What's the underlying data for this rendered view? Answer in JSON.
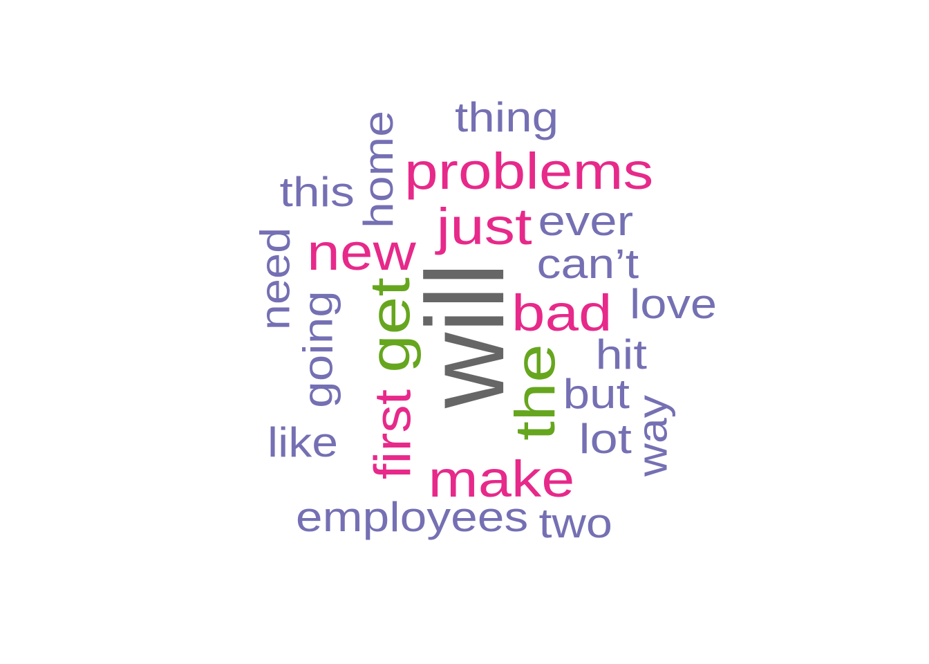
{
  "colors": {
    "gray": "#666666",
    "green": "#66A61E",
    "pink": "#E7298A",
    "purple": "#7570B3"
  },
  "words": [
    {
      "text": "will",
      "color": "gray"
    },
    {
      "text": "get",
      "color": "green"
    },
    {
      "text": "the",
      "color": "green"
    },
    {
      "text": "problems",
      "color": "pink"
    },
    {
      "text": "just",
      "color": "pink"
    },
    {
      "text": "new",
      "color": "pink"
    },
    {
      "text": "bad",
      "color": "pink"
    },
    {
      "text": "first",
      "color": "pink"
    },
    {
      "text": "make",
      "color": "pink"
    },
    {
      "text": "thing",
      "color": "purple"
    },
    {
      "text": "home",
      "color": "purple"
    },
    {
      "text": "this",
      "color": "purple"
    },
    {
      "text": "ever",
      "color": "purple"
    },
    {
      "text": "need",
      "color": "purple"
    },
    {
      "text": "can’t",
      "color": "purple"
    },
    {
      "text": "love",
      "color": "purple"
    },
    {
      "text": "going",
      "color": "purple"
    },
    {
      "text": "hit",
      "color": "purple"
    },
    {
      "text": "but",
      "color": "purple"
    },
    {
      "text": "way",
      "color": "purple"
    },
    {
      "text": "lot",
      "color": "purple"
    },
    {
      "text": "like",
      "color": "purple"
    },
    {
      "text": "employees",
      "color": "purple"
    },
    {
      "text": "two",
      "color": "purple"
    }
  ]
}
